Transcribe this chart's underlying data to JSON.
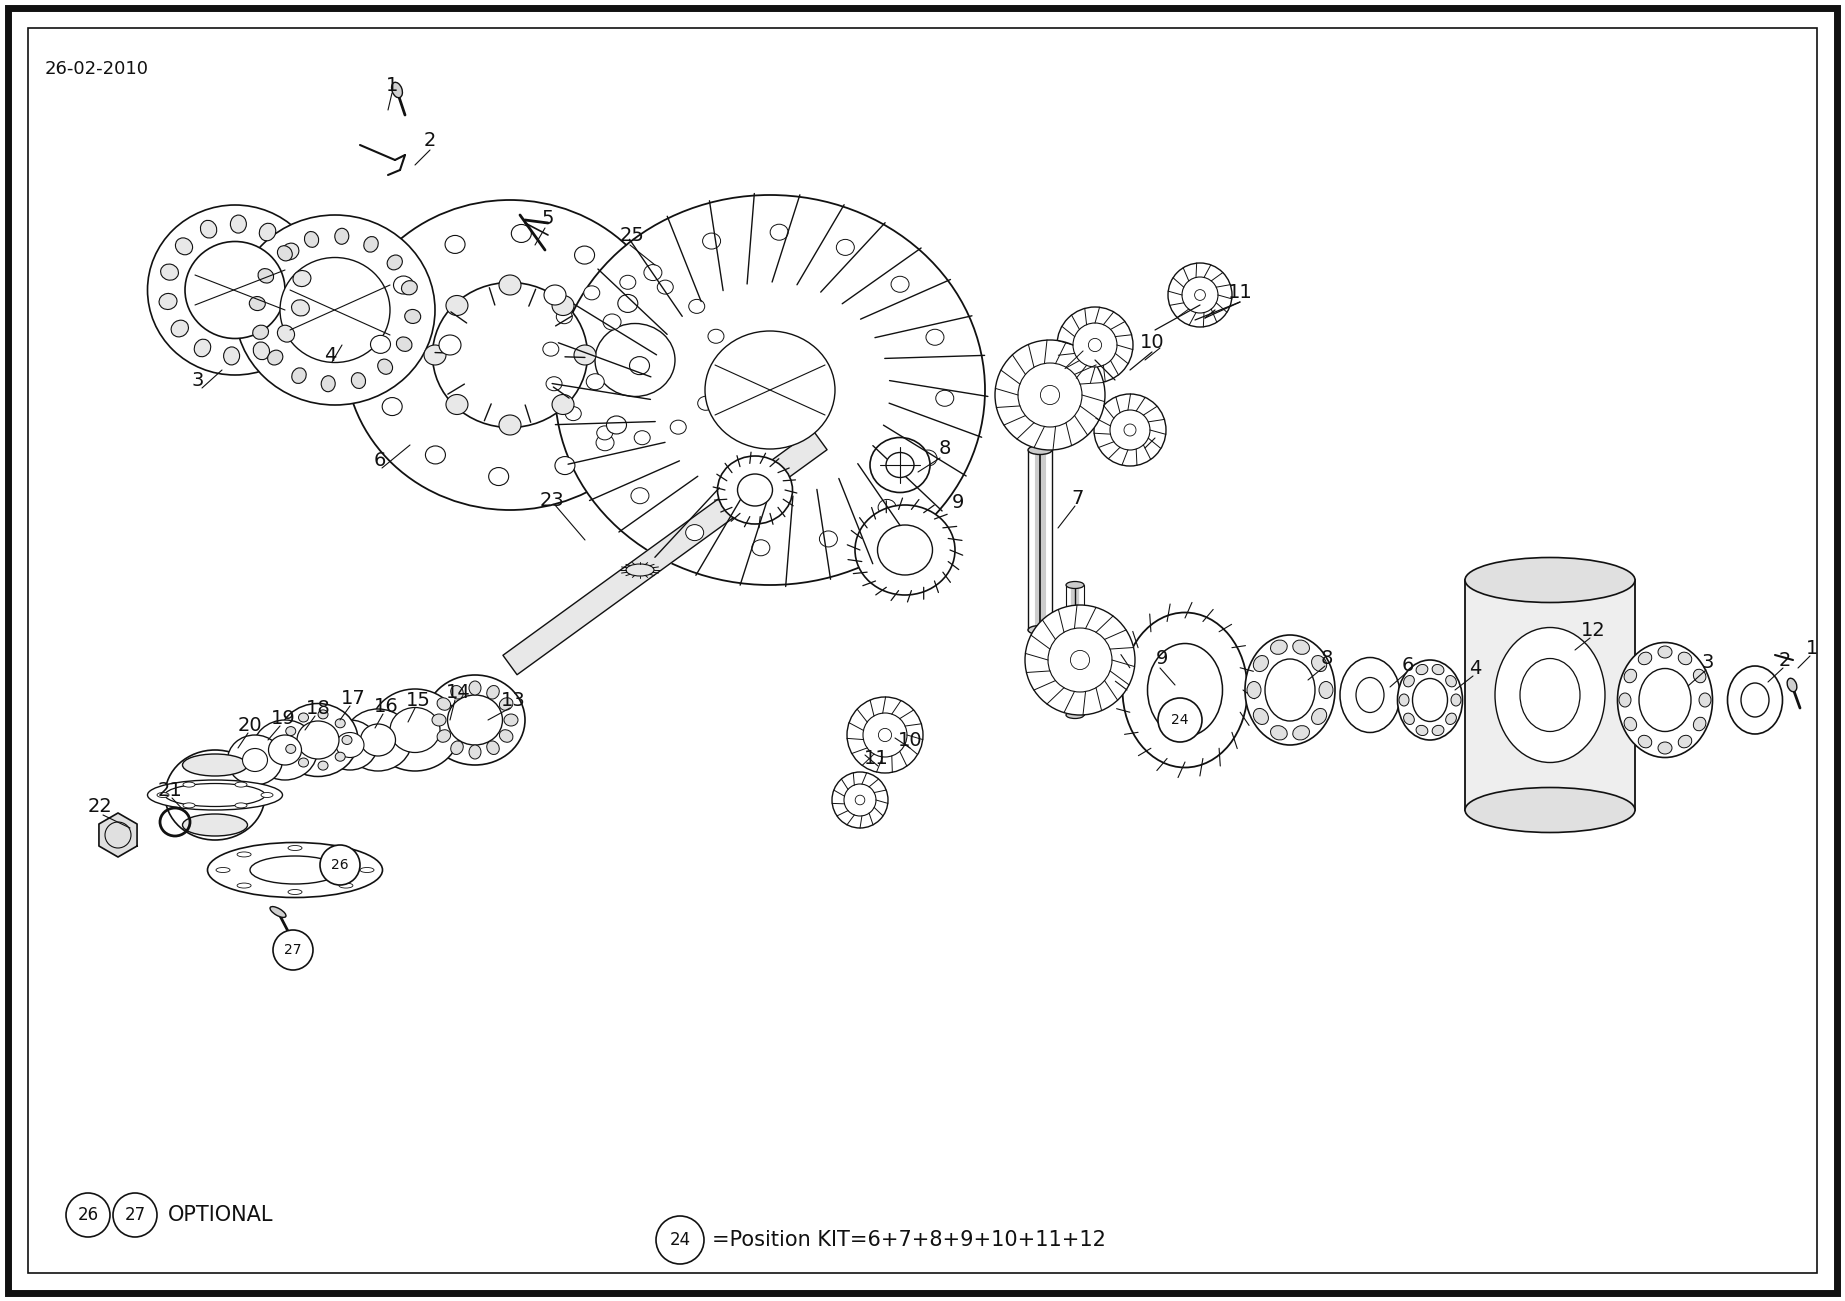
{
  "date_label": "26-02-2010",
  "background_color": "#ffffff",
  "border_color": "#000000",
  "line_color": "#111111",
  "text_color": "#111111",
  "fig_width": 18.45,
  "fig_height": 13.01,
  "optional_label": "OPTIONAL",
  "kit_text": "=Position KIT=6+7+8+9+10+11+12",
  "outer_border_lw": 5,
  "inner_border_lw": 1.2
}
